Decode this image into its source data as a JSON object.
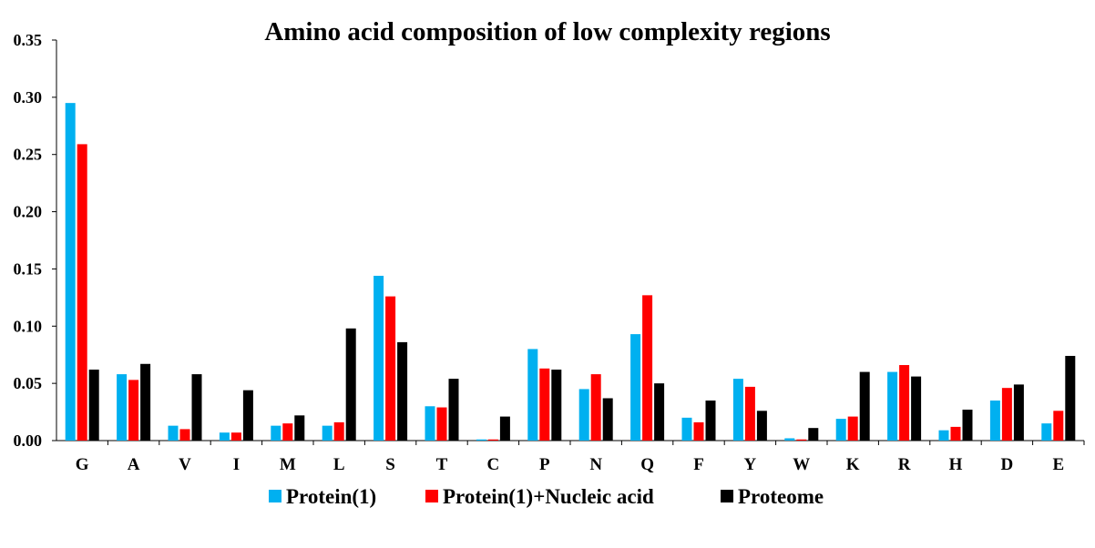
{
  "chart_data": {
    "type": "bar",
    "title": "Amino acid composition of low complexity regions",
    "xlabel": "",
    "ylabel": "",
    "ylim": [
      0,
      0.35
    ],
    "yticks": [
      "0.00",
      "0.05",
      "0.10",
      "0.15",
      "0.20",
      "0.25",
      "0.30",
      "0.35"
    ],
    "categories": [
      "G",
      "A",
      "V",
      "I",
      "M",
      "L",
      "S",
      "T",
      "C",
      "P",
      "N",
      "Q",
      "F",
      "Y",
      "W",
      "K",
      "R",
      "H",
      "D",
      "E"
    ],
    "series": [
      {
        "name": "Protein(1)",
        "color": "#00B0F0",
        "values": [
          0.295,
          0.058,
          0.013,
          0.007,
          0.013,
          0.013,
          0.144,
          0.03,
          0.001,
          0.08,
          0.045,
          0.093,
          0.02,
          0.054,
          0.002,
          0.019,
          0.06,
          0.009,
          0.035,
          0.015
        ]
      },
      {
        "name": "Protein(1)+Nucleic acid",
        "color": "#FF0000",
        "values": [
          0.259,
          0.053,
          0.01,
          0.007,
          0.015,
          0.016,
          0.126,
          0.029,
          0.001,
          0.063,
          0.058,
          0.127,
          0.016,
          0.047,
          0.001,
          0.021,
          0.066,
          0.012,
          0.046,
          0.026
        ]
      },
      {
        "name": "Proteome",
        "color": "#000000",
        "values": [
          0.062,
          0.067,
          0.058,
          0.044,
          0.022,
          0.098,
          0.086,
          0.054,
          0.021,
          0.062,
          0.037,
          0.05,
          0.035,
          0.026,
          0.011,
          0.06,
          0.056,
          0.027,
          0.049,
          0.074
        ]
      }
    ],
    "grid": false,
    "legend_position": "bottom"
  }
}
